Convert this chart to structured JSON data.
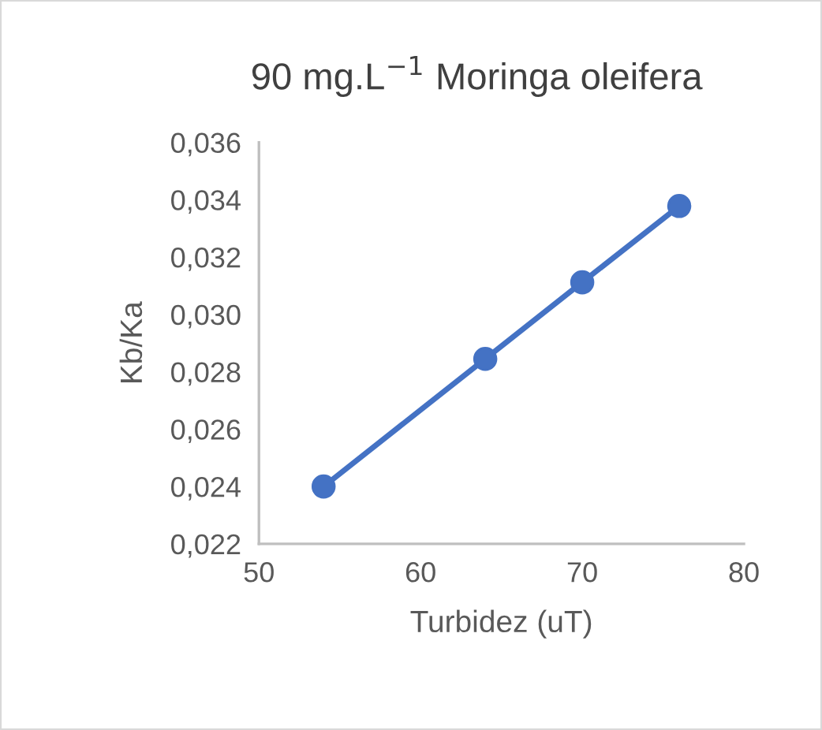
{
  "chart_data": {
    "type": "line",
    "title": "90 mg.L$^{−1}$ Moringa oleifera",
    "xlabel": "Turbidez (uT)",
    "ylabel": "Kb/Ka",
    "x": [
      54,
      64,
      70,
      76
    ],
    "series": [
      {
        "color": "#4472c4",
        "values": [
          0.024,
          0.02845,
          0.03112,
          0.03378
        ]
      }
    ],
    "marker": "circle",
    "line_style": "solid",
    "grid": false,
    "legend": false,
    "xlim": [
      50,
      80
    ],
    "xticks": [
      50,
      60,
      70,
      80
    ],
    "ylim": [
      0.022,
      0.036
    ],
    "yticks": [
      {
        "value": 0.022,
        "label": "0,022"
      },
      {
        "value": 0.024,
        "label": "0,024"
      },
      {
        "value": 0.026,
        "label": "0,026"
      },
      {
        "value": 0.028,
        "label": "0,028"
      },
      {
        "value": 0.03,
        "label": "0,030"
      },
      {
        "value": 0.032,
        "label": "0,032"
      },
      {
        "value": 0.034,
        "label": "0,034"
      },
      {
        "value": 0.036,
        "label": "0,036"
      }
    ]
  }
}
